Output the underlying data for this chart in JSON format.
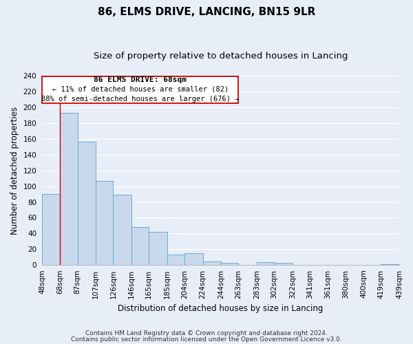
{
  "title": "86, ELMS DRIVE, LANCING, BN15 9LR",
  "subtitle": "Size of property relative to detached houses in Lancing",
  "xlabel": "Distribution of detached houses by size in Lancing",
  "ylabel": "Number of detached properties",
  "bar_edges": [
    48,
    68,
    87,
    107,
    126,
    146,
    165,
    185,
    204,
    224,
    244,
    263,
    283,
    302,
    322,
    341,
    361,
    380,
    400,
    419,
    439
  ],
  "bar_heights": [
    90,
    193,
    156,
    107,
    89,
    48,
    42,
    13,
    15,
    5,
    3,
    0,
    4,
    3,
    0,
    0,
    0,
    0,
    0,
    1
  ],
  "bar_color": "#c8d9ee",
  "bar_edgecolor": "#6aaad4",
  "property_line_x": 68,
  "property_line_color": "#cc0000",
  "ylim": [
    0,
    240
  ],
  "yticks": [
    0,
    20,
    40,
    60,
    80,
    100,
    120,
    140,
    160,
    180,
    200,
    220,
    240
  ],
  "tick_labels": [
    "48sqm",
    "68sqm",
    "87sqm",
    "107sqm",
    "126sqm",
    "146sqm",
    "165sqm",
    "185sqm",
    "204sqm",
    "224sqm",
    "244sqm",
    "263sqm",
    "283sqm",
    "302sqm",
    "322sqm",
    "341sqm",
    "361sqm",
    "380sqm",
    "400sqm",
    "419sqm",
    "439sqm"
  ],
  "annotation_box_title": "86 ELMS DRIVE: 68sqm",
  "annotation_line1": "← 11% of detached houses are smaller (82)",
  "annotation_line2": "88% of semi-detached houses are larger (676) →",
  "footer1": "Contains HM Land Registry data © Crown copyright and database right 2024.",
  "footer2": "Contains public sector information licensed under the Open Government Licence v3.0.",
  "background_color": "#e8eef7",
  "plot_background": "#e8eef7",
  "grid_color": "#ffffff",
  "title_fontsize": 11,
  "subtitle_fontsize": 9.5,
  "axis_label_fontsize": 8.5,
  "tick_fontsize": 7.5,
  "footer_fontsize": 6.5,
  "annot_fontsize_title": 8,
  "annot_fontsize_body": 7.5
}
